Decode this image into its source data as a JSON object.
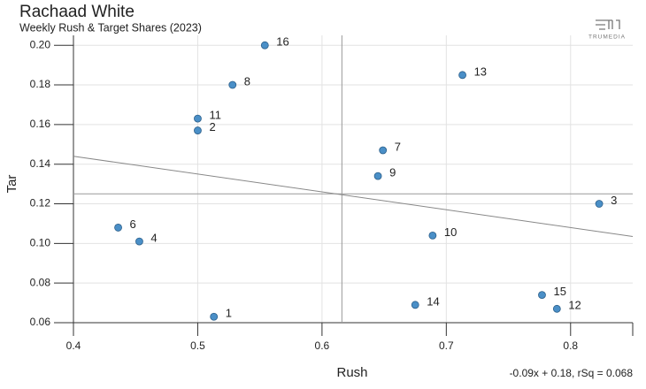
{
  "chart_data": {
    "type": "scatter",
    "title": "Rachaad White",
    "subtitle": "Weekly Rush & Target Shares (2023)",
    "logo": "TRUMEDIA",
    "x_label": "Rush",
    "y_label": "Tar",
    "equation": "-0.09x + 0.18, rSq = 0.068",
    "xlim": [
      0.4,
      0.85
    ],
    "ylim": [
      0.06,
      0.205
    ],
    "xticks": [
      0.4,
      0.5,
      0.6,
      0.7,
      0.8
    ],
    "yticks": [
      0.06,
      0.08,
      {
        "value": 0.1,
        "label": "0.10"
      },
      0.12,
      0.14,
      0.16,
      0.18,
      {
        "value": 0.2,
        "label": "0.20"
      }
    ],
    "grid": true,
    "color": "#4a8fc7",
    "mean_x": 0.616,
    "mean_y": 0.125,
    "slope": -0.09,
    "intercept": 0.18,
    "labels": [
      "16",
      "13",
      "8",
      "11",
      "2",
      "7",
      "9",
      "3",
      "6",
      "4",
      "10",
      "15",
      "12",
      "14",
      "1"
    ],
    "x": [
      0.554,
      0.713,
      0.528,
      0.5,
      0.5,
      0.649,
      0.645,
      0.823,
      0.436,
      0.453,
      0.689,
      0.777,
      0.789,
      0.675,
      0.513
    ],
    "y": [
      0.2,
      0.185,
      0.18,
      0.163,
      0.157,
      0.147,
      0.134,
      0.12,
      0.108,
      0.101,
      0.104,
      0.074,
      0.067,
      0.069,
      0.063
    ]
  }
}
